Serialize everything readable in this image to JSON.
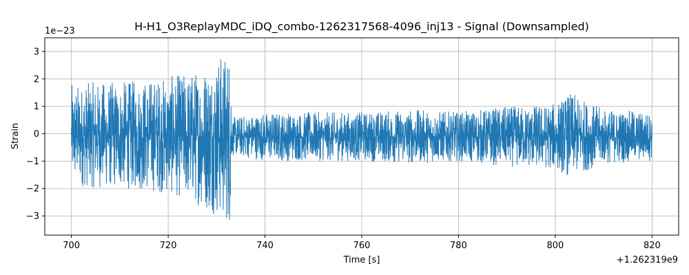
{
  "chart_data": {
    "type": "line",
    "title": "H-H1_O3ReplayMDC_iDQ_combo-1262317568-4096_inj13 - Signal (Downsampled)",
    "xlabel": "Time [s]",
    "ylabel": "Strain",
    "x_offset_label": "+1.262319e9",
    "y_scale_label": "1e−23",
    "xlim": [
      694.5,
      825.5
    ],
    "ylim": [
      -3.7,
      3.5
    ],
    "x_ticks": [
      700,
      720,
      740,
      760,
      780,
      800,
      820
    ],
    "x_tick_labels": [
      "700",
      "720",
      "740",
      "760",
      "780",
      "800",
      "820"
    ],
    "y_ticks": [
      -3,
      -2,
      -1,
      0,
      1,
      2,
      3
    ],
    "y_tick_labels": [
      "−3",
      "−2",
      "−1",
      "0",
      "1",
      "2",
      "3"
    ],
    "grid": true,
    "series": [
      {
        "color": "#1f77b4",
        "x": [
          700,
          705,
          710,
          715,
          720,
          725,
          728,
          730,
          733,
          733.1,
          740,
          750,
          760,
          770,
          780,
          790,
          800,
          803,
          810,
          820
        ],
        "upper": [
          1.8,
          1.9,
          1.9,
          2.0,
          2.1,
          2.3,
          2.6,
          2.8,
          3.2,
          0.6,
          0.8,
          0.8,
          0.8,
          0.9,
          0.8,
          1.0,
          1.1,
          1.5,
          0.9,
          0.8
        ],
        "lower": [
          -1.9,
          -2.0,
          -2.0,
          -2.1,
          -2.2,
          -2.5,
          -2.8,
          -3.0,
          -3.4,
          -0.8,
          -1.0,
          -1.0,
          -1.0,
          -1.1,
          -1.0,
          -1.2,
          -1.3,
          -1.6,
          -1.1,
          -1.0
        ]
      }
    ]
  }
}
